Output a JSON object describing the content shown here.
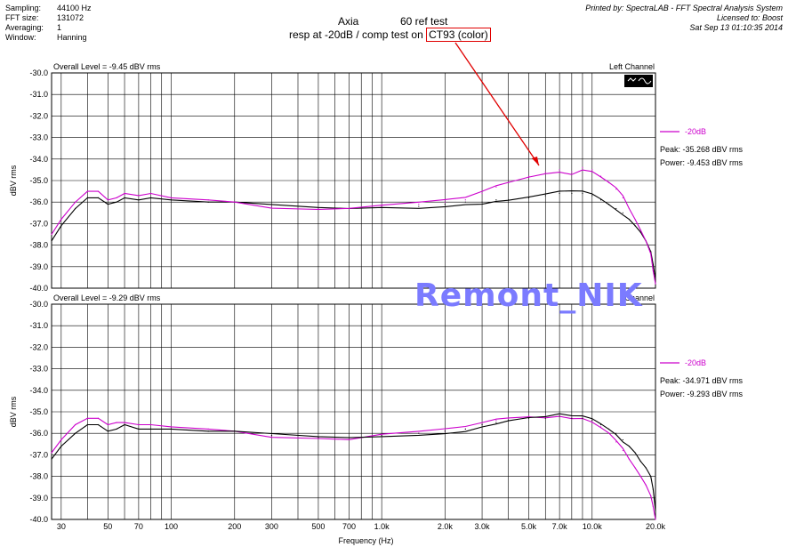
{
  "meta": {
    "rows": [
      {
        "key": "Sampling:",
        "value": "44100 Hz"
      },
      {
        "key": "FFT size:",
        "value": "131072"
      },
      {
        "key": "Averaging:",
        "value": "1"
      },
      {
        "key": "Window:",
        "value": "Hanning"
      }
    ],
    "printed_by": "Printed by: SpectraLAB - FFT Spectral Analysis System",
    "licensed_to": "Licensed to: Boost",
    "date": "Sat Sep 13 01:10:35 2014"
  },
  "title": {
    "line1_left": "Axia",
    "line1_right": "60 ref test",
    "line2_prefix": "resp at -20dB / comp test on ",
    "line2_boxed": "CT93 (color)"
  },
  "watermark": "Remont_NIK",
  "chart_data": [
    {
      "type": "line",
      "scale_x": "log",
      "xlabel": "",
      "ylabel": "dBV rms",
      "xlim": [
        27,
        20000
      ],
      "ylim": [
        -40.0,
        -30.0
      ],
      "grid": true,
      "corner_left": "Overall Level = -9.45 dBV rms",
      "corner_right": "Left Channel",
      "x_ticks": [
        "30",
        "50",
        "70",
        "100",
        "200",
        "300",
        "500",
        "700",
        "1.0k",
        "2.0k",
        "3.0k",
        "5.0k",
        "7.0k",
        "10.0k",
        "20.0k"
      ],
      "y_ticks": [
        "-30.0",
        "-31.0",
        "-32.0",
        "-33.0",
        "-34.0",
        "-35.0",
        "-36.0",
        "-37.0",
        "-38.0",
        "-39.0",
        "-40.0"
      ],
      "legend": {
        "label": "-20dB",
        "color": "#cc00cc"
      },
      "stats": {
        "peak": "Peak: -35.268 dBV rms",
        "power": "Power: -9.453 dBV rms"
      },
      "series": [
        {
          "name": "-20dB",
          "color": "#cc00cc",
          "x": [
            27,
            30,
            35,
            40,
            45,
            50,
            55,
            60,
            70,
            80,
            100,
            150,
            200,
            300,
            500,
            700,
            1000,
            1500,
            2000,
            2500,
            3000,
            3500,
            4000,
            5000,
            6000,
            7000,
            8000,
            9000,
            10000,
            11000,
            12000,
            13000,
            14000,
            15000,
            16000,
            17000,
            18000,
            19000,
            19500,
            20000
          ],
          "y": [
            -37.5,
            -36.8,
            -36.0,
            -35.5,
            -35.5,
            -35.9,
            -35.8,
            -35.6,
            -35.7,
            -35.6,
            -35.8,
            -35.9,
            -36.0,
            -36.2,
            -36.3,
            -36.3,
            -36.2,
            -36.1,
            -36.0,
            -35.9,
            -35.6,
            -35.3,
            -35.1,
            -34.8,
            -34.6,
            -34.5,
            -34.6,
            -34.4,
            -34.5,
            -34.8,
            -35.1,
            -35.4,
            -35.8,
            -36.3,
            -36.8,
            -37.3,
            -37.8,
            -38.4,
            -39.2,
            -39.8
          ]
        },
        {
          "name": "",
          "color": "#000000",
          "x": [
            27,
            30,
            35,
            40,
            45,
            50,
            55,
            60,
            70,
            80,
            100,
            150,
            200,
            300,
            500,
            700,
            1000,
            1500,
            2000,
            2500,
            3000,
            3500,
            4000,
            5000,
            6000,
            7000,
            8000,
            9000,
            10000,
            11000,
            12000,
            13000,
            14000,
            15000,
            16000,
            17000,
            18000,
            19000,
            19500,
            20000
          ],
          "y": [
            -37.8,
            -37.1,
            -36.3,
            -35.8,
            -35.8,
            -36.1,
            -36.0,
            -35.8,
            -35.9,
            -35.8,
            -35.9,
            -36.0,
            -36.0,
            -36.2,
            -36.3,
            -36.3,
            -36.2,
            -36.2,
            -36.1,
            -36.0,
            -36.0,
            -35.9,
            -35.9,
            -35.8,
            -35.7,
            -35.6,
            -35.6,
            -35.6,
            -35.7,
            -35.9,
            -36.1,
            -36.3,
            -36.5,
            -36.8,
            -37.1,
            -37.4,
            -37.8,
            -38.3,
            -38.9,
            -39.6
          ]
        }
      ]
    },
    {
      "type": "line",
      "scale_x": "log",
      "xlabel": "Frequency (Hz)",
      "ylabel": "dBV rms",
      "xlim": [
        27,
        20000
      ],
      "ylim": [
        -40.0,
        -30.0
      ],
      "grid": true,
      "corner_left": "Overall Level = -9.29 dBV rms",
      "corner_right": "Channel",
      "x_ticks": [
        "30",
        "50",
        "70",
        "100",
        "200",
        "300",
        "500",
        "700",
        "1.0k",
        "2.0k",
        "3.0k",
        "5.0k",
        "7.0k",
        "10.0k",
        "20.0k"
      ],
      "y_ticks": [
        "-30.0",
        "-31.0",
        "-32.0",
        "-33.0",
        "-34.0",
        "-35.0",
        "-36.0",
        "-37.0",
        "-38.0",
        "-39.0",
        "-40.0"
      ],
      "legend": {
        "label": "-20dB",
        "color": "#cc00cc"
      },
      "stats": {
        "peak": "Peak: -34.971 dBV rms",
        "power": "Power: -9.293 dBV rms"
      },
      "series": [
        {
          "name": "-20dB",
          "color": "#cc00cc",
          "x": [
            27,
            30,
            35,
            40,
            45,
            50,
            55,
            60,
            70,
            80,
            100,
            150,
            200,
            300,
            500,
            700,
            1000,
            1500,
            2000,
            2500,
            3000,
            3500,
            4000,
            5000,
            6000,
            7000,
            8000,
            9000,
            10000,
            11000,
            12000,
            13000,
            14000,
            15000,
            16000,
            17000,
            18000,
            19000,
            19500,
            20000
          ],
          "y": [
            -36.9,
            -36.3,
            -35.6,
            -35.3,
            -35.3,
            -35.6,
            -35.5,
            -35.5,
            -35.6,
            -35.6,
            -35.7,
            -35.8,
            -35.9,
            -36.1,
            -36.2,
            -36.3,
            -36.1,
            -36.0,
            -35.9,
            -35.8,
            -35.6,
            -35.4,
            -35.3,
            -35.2,
            -35.2,
            -35.1,
            -35.2,
            -35.2,
            -35.4,
            -35.7,
            -36.0,
            -36.4,
            -36.8,
            -37.2,
            -37.6,
            -38.0,
            -38.4,
            -38.9,
            -39.4,
            -40.0
          ]
        },
        {
          "name": "",
          "color": "#000000",
          "x": [
            27,
            30,
            35,
            40,
            45,
            50,
            55,
            60,
            70,
            80,
            100,
            150,
            200,
            300,
            500,
            700,
            1000,
            1500,
            2000,
            2500,
            3000,
            3500,
            4000,
            5000,
            6000,
            7000,
            8000,
            9000,
            10000,
            11000,
            12000,
            13000,
            14000,
            15000,
            16000,
            17000,
            18000,
            19000,
            19500,
            20000
          ],
          "y": [
            -37.2,
            -36.6,
            -36.0,
            -35.6,
            -35.6,
            -35.9,
            -35.8,
            -35.6,
            -35.8,
            -35.8,
            -35.8,
            -35.9,
            -35.9,
            -36.1,
            -36.2,
            -36.2,
            -36.1,
            -36.0,
            -35.9,
            -35.8,
            -35.6,
            -35.5,
            -35.4,
            -35.3,
            -35.3,
            -35.2,
            -35.3,
            -35.3,
            -35.4,
            -35.6,
            -35.8,
            -36.0,
            -36.3,
            -36.6,
            -36.9,
            -37.3,
            -37.6,
            -38.0,
            -38.6,
            -39.6
          ]
        }
      ]
    }
  ]
}
